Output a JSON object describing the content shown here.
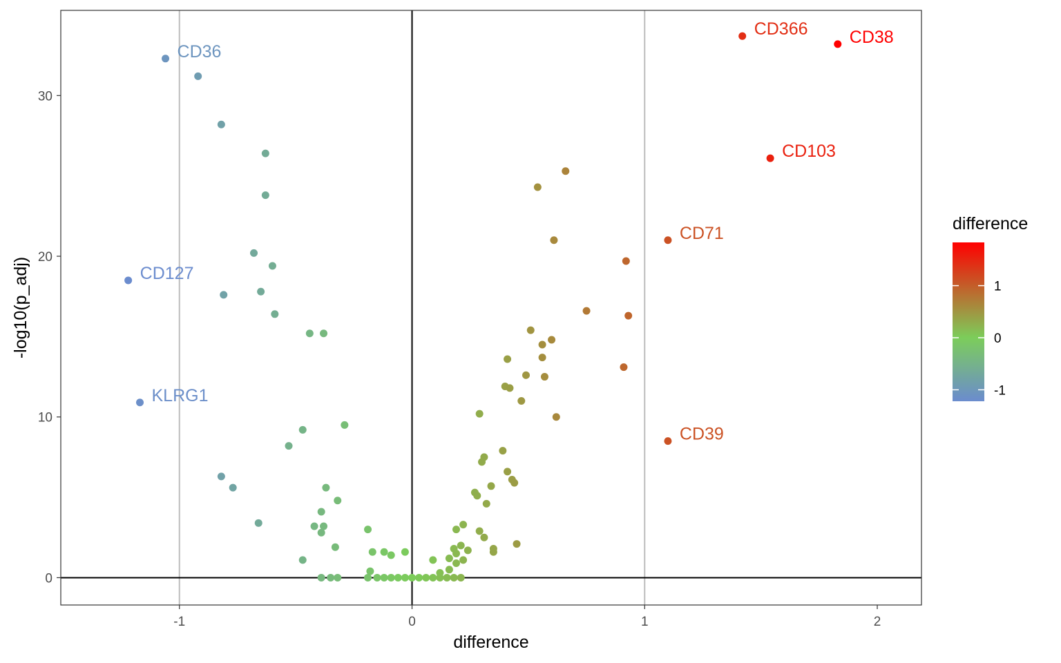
{
  "chart_data": {
    "type": "scatter",
    "title": "",
    "xlabel": "difference",
    "ylabel": "-log10(p_adj)",
    "xlim": [
      -1.51,
      2.19
    ],
    "ylim": [
      -1.7,
      35.3
    ],
    "x_ticks": [
      -1,
      0,
      1,
      2
    ],
    "x_tick_labels": [
      "-1",
      "0",
      "1",
      "2"
    ],
    "y_ticks": [
      0,
      10,
      20,
      30
    ],
    "y_tick_labels": [
      "0",
      "10",
      "20",
      "30"
    ],
    "grid": false,
    "reference_lines": {
      "vertical_grey": [
        -1,
        1
      ],
      "vertical_black": [
        0
      ],
      "horizontal_black": [
        0
      ]
    },
    "legend": {
      "title": "difference",
      "position": "right",
      "type": "colorbar",
      "breaks": [
        1,
        0,
        -1
      ],
      "labels": [
        "1",
        "0",
        "-1"
      ],
      "range": [
        -1.22,
        1.83
      ],
      "colors": {
        "low": "#6b8cce",
        "mid": "#7ccd5a",
        "high": "#ff0000"
      }
    },
    "labeled_points": [
      {
        "label": "CD38",
        "x": 1.83,
        "y": 33.2
      },
      {
        "label": "CD366",
        "x": 1.42,
        "y": 33.7
      },
      {
        "label": "CD103",
        "x": 1.54,
        "y": 26.1
      },
      {
        "label": "CD71",
        "x": 1.1,
        "y": 21.0
      },
      {
        "label": "CD39",
        "x": 1.1,
        "y": 8.5
      },
      {
        "label": "CD36",
        "x": -1.06,
        "y": 32.3
      },
      {
        "label": "CD127",
        "x": -1.22,
        "y": 18.5
      },
      {
        "label": "KLRG1",
        "x": -1.17,
        "y": 10.9
      }
    ],
    "points": [
      {
        "x": -0.92,
        "y": 31.2
      },
      {
        "x": -0.82,
        "y": 28.2
      },
      {
        "x": -0.63,
        "y": 26.4
      },
      {
        "x": -0.63,
        "y": 23.8
      },
      {
        "x": -0.68,
        "y": 20.2
      },
      {
        "x": -0.6,
        "y": 19.4
      },
      {
        "x": -0.81,
        "y": 17.6
      },
      {
        "x": -0.65,
        "y": 17.8
      },
      {
        "x": -0.59,
        "y": 16.4
      },
      {
        "x": -0.44,
        "y": 15.2
      },
      {
        "x": -0.38,
        "y": 15.2
      },
      {
        "x": -0.29,
        "y": 9.5
      },
      {
        "x": -0.47,
        "y": 9.2
      },
      {
        "x": -0.53,
        "y": 8.2
      },
      {
        "x": -0.82,
        "y": 6.3
      },
      {
        "x": -0.77,
        "y": 5.6
      },
      {
        "x": -0.66,
        "y": 3.4
      },
      {
        "x": -0.37,
        "y": 5.6
      },
      {
        "x": -0.32,
        "y": 4.8
      },
      {
        "x": -0.39,
        "y": 4.1
      },
      {
        "x": -0.42,
        "y": 3.2
      },
      {
        "x": -0.38,
        "y": 3.2
      },
      {
        "x": -0.39,
        "y": 2.8
      },
      {
        "x": -0.33,
        "y": 1.9
      },
      {
        "x": -0.47,
        "y": 1.1
      },
      {
        "x": -0.19,
        "y": 3.0
      },
      {
        "x": -0.17,
        "y": 1.6
      },
      {
        "x": -0.12,
        "y": 1.6
      },
      {
        "x": -0.09,
        "y": 1.4
      },
      {
        "x": -0.03,
        "y": 1.6
      },
      {
        "x": -0.18,
        "y": 0.4
      },
      {
        "x": -0.39,
        "y": 0.0
      },
      {
        "x": -0.35,
        "y": 0.0
      },
      {
        "x": -0.32,
        "y": 0.0
      },
      {
        "x": -0.19,
        "y": 0.0
      },
      {
        "x": -0.15,
        "y": 0.0
      },
      {
        "x": -0.12,
        "y": 0.0
      },
      {
        "x": -0.09,
        "y": 0.0
      },
      {
        "x": -0.06,
        "y": 0.0
      },
      {
        "x": -0.03,
        "y": 0.0
      },
      {
        "x": 0.0,
        "y": 0.0
      },
      {
        "x": 0.03,
        "y": 0.0
      },
      {
        "x": 0.06,
        "y": 0.0
      },
      {
        "x": 0.09,
        "y": 0.0
      },
      {
        "x": 0.12,
        "y": 0.0
      },
      {
        "x": 0.15,
        "y": 0.0
      },
      {
        "x": 0.18,
        "y": 0.0
      },
      {
        "x": 0.21,
        "y": 0.0
      },
      {
        "x": 0.12,
        "y": 0.3
      },
      {
        "x": 0.16,
        "y": 0.5
      },
      {
        "x": 0.19,
        "y": 0.9
      },
      {
        "x": 0.09,
        "y": 1.1
      },
      {
        "x": 0.16,
        "y": 1.2
      },
      {
        "x": 0.19,
        "y": 1.5
      },
      {
        "x": 0.22,
        "y": 1.1
      },
      {
        "x": 0.18,
        "y": 1.8
      },
      {
        "x": 0.21,
        "y": 2.0
      },
      {
        "x": 0.24,
        "y": 1.7
      },
      {
        "x": 0.19,
        "y": 3.0
      },
      {
        "x": 0.22,
        "y": 3.3
      },
      {
        "x": 0.29,
        "y": 10.2
      },
      {
        "x": 0.3,
        "y": 7.2
      },
      {
        "x": 0.31,
        "y": 7.5
      },
      {
        "x": 0.27,
        "y": 5.3
      },
      {
        "x": 0.28,
        "y": 5.1
      },
      {
        "x": 0.34,
        "y": 5.7
      },
      {
        "x": 0.32,
        "y": 4.6
      },
      {
        "x": 0.29,
        "y": 2.9
      },
      {
        "x": 0.31,
        "y": 2.5
      },
      {
        "x": 0.35,
        "y": 1.8
      },
      {
        "x": 0.35,
        "y": 1.6
      },
      {
        "x": 0.39,
        "y": 7.9
      },
      {
        "x": 0.41,
        "y": 6.6
      },
      {
        "x": 0.43,
        "y": 6.1
      },
      {
        "x": 0.44,
        "y": 5.9
      },
      {
        "x": 0.45,
        "y": 2.1
      },
      {
        "x": 0.4,
        "y": 11.9
      },
      {
        "x": 0.42,
        "y": 11.8
      },
      {
        "x": 0.41,
        "y": 13.6
      },
      {
        "x": 0.47,
        "y": 11.0
      },
      {
        "x": 0.49,
        "y": 12.6
      },
      {
        "x": 0.51,
        "y": 15.4
      },
      {
        "x": 0.56,
        "y": 13.7
      },
      {
        "x": 0.56,
        "y": 14.5
      },
      {
        "x": 0.57,
        "y": 12.5
      },
      {
        "x": 0.6,
        "y": 14.8
      },
      {
        "x": 0.62,
        "y": 10.0
      },
      {
        "x": 0.54,
        "y": 24.3
      },
      {
        "x": 0.61,
        "y": 21.0
      },
      {
        "x": 0.66,
        "y": 25.3
      },
      {
        "x": 0.75,
        "y": 16.6
      },
      {
        "x": 0.92,
        "y": 19.7
      },
      {
        "x": 0.93,
        "y": 16.3
      },
      {
        "x": 0.91,
        "y": 13.1
      }
    ]
  }
}
